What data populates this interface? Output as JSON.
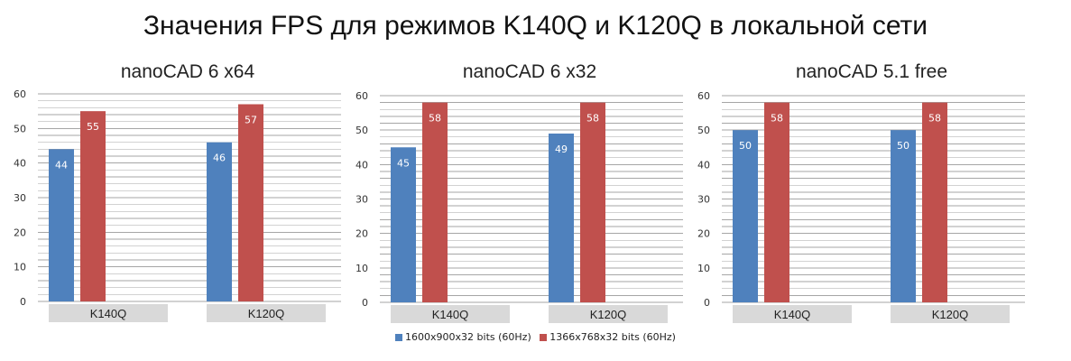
{
  "title": "Значения FPS для режимов K140Q и K120Q в локальной сети",
  "colors": {
    "series1": "#4f81bd",
    "series2": "#c0504d",
    "grid": "#a6a6a6",
    "category_box": "#d9d9d9"
  },
  "legend": [
    {
      "label": "1600x900x32 bits (60Hz)",
      "color": "#4f81bd"
    },
    {
      "label": "1366x768x32 bits (60Hz)",
      "color": "#c0504d"
    }
  ],
  "chart_data": [
    {
      "type": "bar",
      "title": "nanoCAD 6 x64",
      "categories": [
        "K140Q",
        "K120Q"
      ],
      "series": [
        {
          "name": "1600x900x32 bits (60Hz)",
          "values": [
            44,
            46
          ]
        },
        {
          "name": "1366x768x32 bits (60Hz)",
          "values": [
            55,
            57
          ]
        }
      ],
      "ylim": [
        0,
        60
      ],
      "yticks": [
        0,
        10,
        20,
        30,
        40,
        50,
        60
      ],
      "grid": true,
      "data_labels": true
    },
    {
      "type": "bar",
      "title": "nanoCAD 6 x32",
      "categories": [
        "K140Q",
        "K120Q"
      ],
      "series": [
        {
          "name": "1600x900x32 bits (60Hz)",
          "values": [
            45,
            49
          ]
        },
        {
          "name": "1366x768x32 bits (60Hz)",
          "values": [
            58,
            58
          ]
        }
      ],
      "ylim": [
        0,
        60
      ],
      "yticks": [
        0,
        10,
        20,
        30,
        40,
        50,
        60
      ],
      "grid": true,
      "data_labels": true
    },
    {
      "type": "bar",
      "title": "nanoCAD 5.1 free",
      "categories": [
        "K140Q",
        "K120Q"
      ],
      "series": [
        {
          "name": "1600x900x32 bits (60Hz)",
          "values": [
            50,
            50
          ]
        },
        {
          "name": "1366x768x32 bits (60Hz)",
          "values": [
            58,
            58
          ]
        }
      ],
      "ylim": [
        0,
        60
      ],
      "yticks": [
        0,
        10,
        20,
        30,
        40,
        50,
        60
      ],
      "grid": true,
      "data_labels": true
    }
  ]
}
